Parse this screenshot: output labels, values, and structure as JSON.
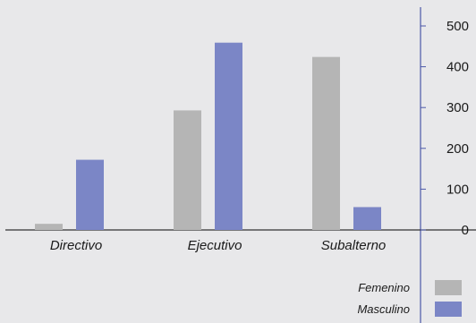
{
  "chart_data": {
    "type": "bar",
    "title": "",
    "xlabel": "",
    "ylabel": "",
    "categories": [
      "Directivo",
      "Ejecutivo",
      "Subalterno"
    ],
    "series": [
      {
        "name": "Femenino",
        "values": [
          15,
          293,
          424
        ],
        "color": "#b5b5b5"
      },
      {
        "name": "Masculino",
        "values": [
          172,
          459,
          56
        ],
        "color": "#7b86c6"
      }
    ],
    "ylim": [
      0,
      500
    ],
    "yticks": [
      "0",
      "100",
      "200",
      "300",
      "400",
      "500"
    ],
    "y_axis_side": "right",
    "grid": false,
    "legend_position": "bottom-right"
  }
}
